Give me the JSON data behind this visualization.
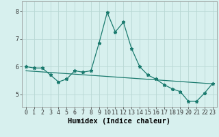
{
  "xlabel": "Humidex (Indice chaleur)",
  "bg_color": "#d7f0ee",
  "grid_color": "#b8d8d4",
  "line_color": "#1a7a6e",
  "xlim": [
    -0.5,
    23.5
  ],
  "ylim": [
    4.55,
    8.35
  ],
  "yticks": [
    5,
    6,
    7,
    8
  ],
  "xticks": [
    0,
    1,
    2,
    3,
    4,
    5,
    6,
    7,
    8,
    9,
    10,
    11,
    12,
    13,
    14,
    15,
    16,
    17,
    18,
    19,
    20,
    21,
    22,
    23
  ],
  "curve1_x": [
    0,
    1,
    2,
    3,
    4,
    5,
    6,
    7,
    8,
    9,
    10,
    11,
    12,
    13,
    14,
    15,
    16,
    17,
    18,
    19,
    20,
    21,
    22,
    23
  ],
  "curve1_y": [
    6.0,
    5.95,
    5.95,
    5.7,
    5.45,
    5.55,
    5.85,
    5.8,
    5.85,
    6.85,
    7.95,
    7.25,
    7.6,
    6.65,
    6.0,
    5.7,
    5.55,
    5.35,
    5.2,
    5.1,
    4.75,
    4.75,
    5.05,
    5.4
  ],
  "curve2_x": [
    0,
    23
  ],
  "curve2_y": [
    5.85,
    5.38
  ],
  "tick_fontsize": 6.0,
  "label_fontsize": 7.5
}
